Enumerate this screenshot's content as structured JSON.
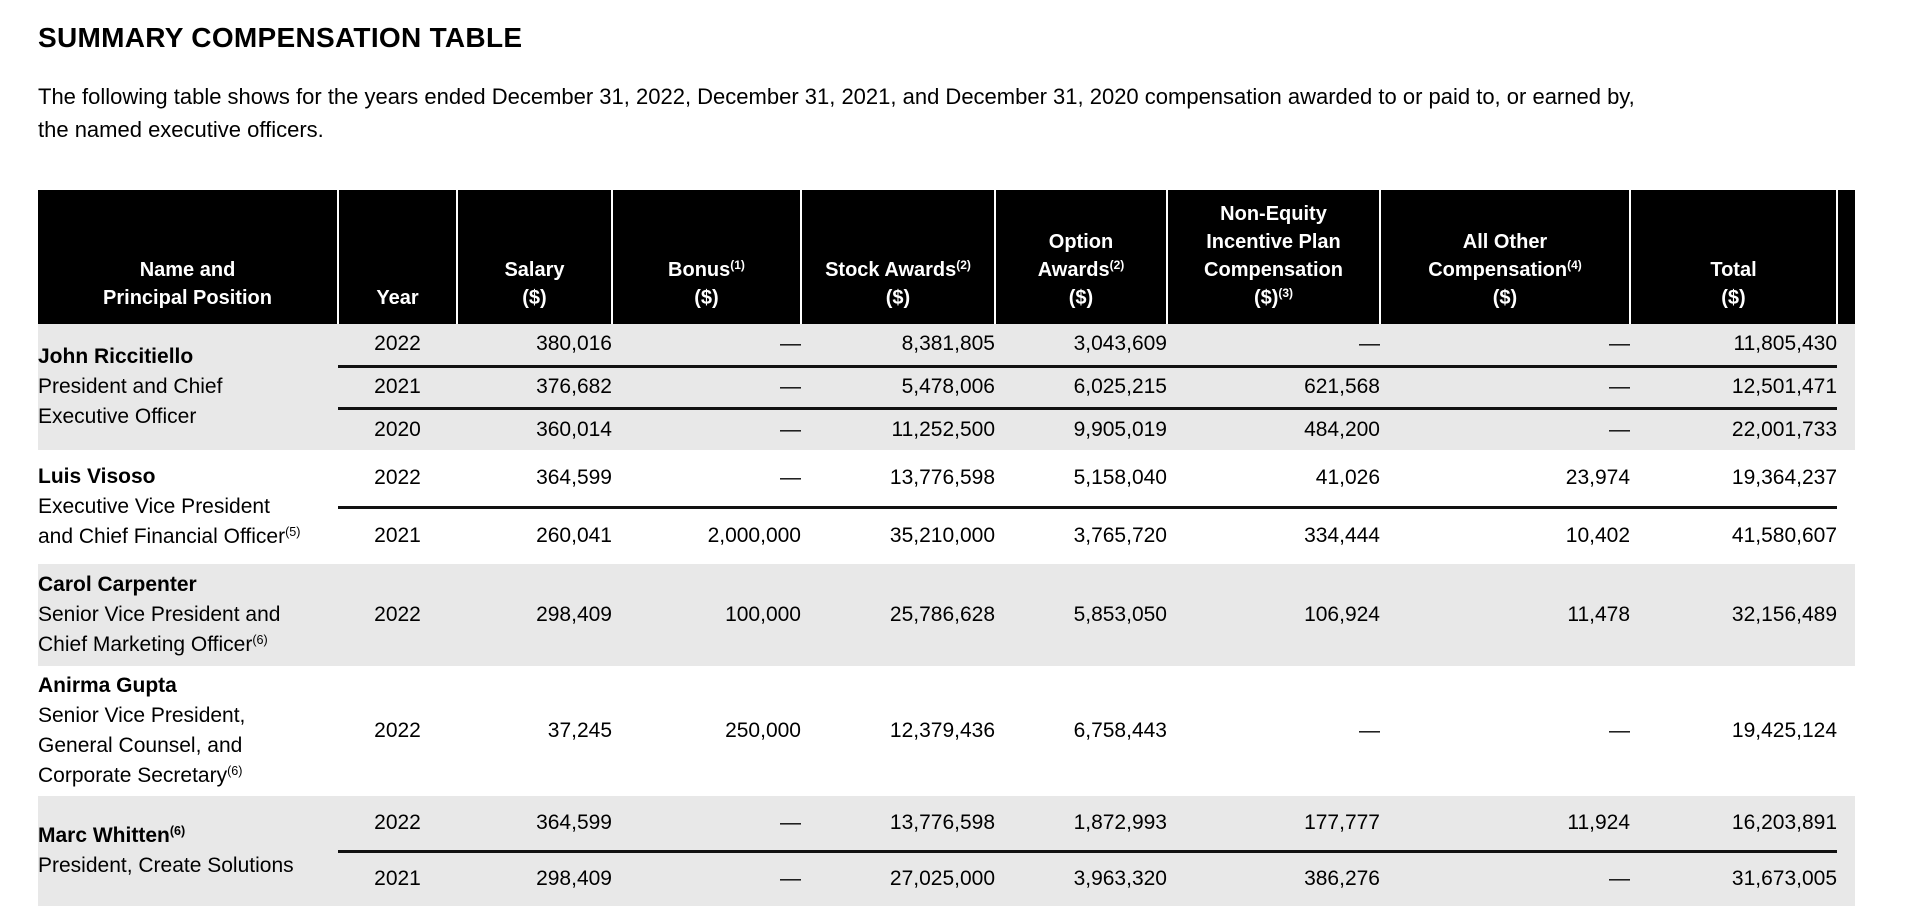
{
  "document": {
    "title": "SUMMARY COMPENSATION TABLE",
    "intro_lines": [
      "The following table shows for the years ended December 31, 2022, December 31, 2021, and December 31, 2020 compensation awarded to or paid to, or earned by,",
      "the named executive officers."
    ]
  },
  "colors": {
    "header_bg": "#000000",
    "header_text": "#ffffff",
    "shaded_row_bg": "#e8e8e8",
    "body_text": "#000000",
    "row_divider": "#111111"
  },
  "table": {
    "header": [
      {
        "id": "name",
        "lines": [
          [
            {
              "t": "Name and"
            }
          ],
          [
            {
              "t": "Principal Position"
            }
          ]
        ]
      },
      {
        "id": "year",
        "lines": [
          [
            {
              "t": "Year"
            }
          ]
        ]
      },
      {
        "id": "salary",
        "lines": [
          [
            {
              "t": "Salary"
            }
          ],
          [
            {
              "t": "($)"
            }
          ]
        ]
      },
      {
        "id": "bonus",
        "lines": [
          [
            {
              "t": "Bonus"
            },
            {
              "sup": "(1)"
            }
          ],
          [
            {
              "t": "($)"
            }
          ]
        ]
      },
      {
        "id": "stock_awards",
        "lines": [
          [
            {
              "t": "Stock Awards"
            },
            {
              "sup": "(2)"
            }
          ],
          [
            {
              "t": "($)"
            }
          ]
        ]
      },
      {
        "id": "option_awards",
        "lines": [
          [
            {
              "t": "Option"
            }
          ],
          [
            {
              "t": "Awards"
            },
            {
              "sup": "(2)"
            }
          ],
          [
            {
              "t": "($)"
            }
          ]
        ]
      },
      {
        "id": "non_equity_incentive",
        "lines": [
          [
            {
              "t": "Non-Equity"
            }
          ],
          [
            {
              "t": "Incentive Plan"
            }
          ],
          [
            {
              "t": "Compensation"
            }
          ],
          [
            {
              "t": "($)"
            },
            {
              "sup": "(3)"
            }
          ]
        ]
      },
      {
        "id": "all_other_comp",
        "lines": [
          [
            {
              "t": "All Other"
            }
          ],
          [
            {
              "t": "Compensation"
            },
            {
              "sup": "(4)"
            }
          ],
          [
            {
              "t": "($)"
            }
          ]
        ]
      },
      {
        "id": "total",
        "lines": [
          [
            {
              "t": "Total"
            }
          ],
          [
            {
              "t": "($)"
            }
          ]
        ]
      }
    ],
    "groups": [
      {
        "name": "John Riccitiello",
        "name_sup": "",
        "position_lines": [
          "President and Chief",
          "Executive Officer"
        ],
        "position_sup": "",
        "shaded": true,
        "rows": [
          [
            "2022",
            "380,016",
            "—",
            "8,381,805",
            "3,043,609",
            "—",
            "—",
            "11,805,430"
          ],
          [
            "2021",
            "376,682",
            "—",
            "5,478,006",
            "6,025,215",
            "621,568",
            "—",
            "12,501,471"
          ],
          [
            "2020",
            "360,014",
            "—",
            "11,252,500",
            "9,905,019",
            "484,200",
            "—",
            "22,001,733"
          ]
        ]
      },
      {
        "name": "Luis Visoso",
        "name_sup": "",
        "position_lines": [
          "Executive Vice President",
          "and Chief Financial Officer"
        ],
        "position_sup": "(5)",
        "shaded": false,
        "rows": [
          [
            "2022",
            "364,599",
            "—",
            "13,776,598",
            "5,158,040",
            "41,026",
            "23,974",
            "19,364,237"
          ],
          [
            "2021",
            "260,041",
            "2,000,000",
            "35,210,000",
            "3,765,720",
            "334,444",
            "10,402",
            "41,580,607"
          ]
        ]
      },
      {
        "name": "Carol Carpenter",
        "name_sup": "",
        "position_lines": [
          "Senior Vice President and",
          "Chief Marketing Officer"
        ],
        "position_sup": "(6)",
        "shaded": true,
        "rows": [
          [
            "2022",
            "298,409",
            "100,000",
            "25,786,628",
            "5,853,050",
            "106,924",
            "11,478",
            "32,156,489"
          ]
        ]
      },
      {
        "name": "Anirma Gupta",
        "name_sup": "",
        "position_lines": [
          "Senior Vice President,",
          "General Counsel, and",
          "Corporate Secretary"
        ],
        "position_sup": "(6)",
        "shaded": false,
        "rows": [
          [
            "2022",
            "37,245",
            "250,000",
            "12,379,436",
            "6,758,443",
            "—",
            "—",
            "19,425,124"
          ]
        ]
      },
      {
        "name": "Marc Whitten",
        "name_sup": "(6)",
        "position_lines": [
          "President, Create Solutions"
        ],
        "position_sup": "",
        "shaded": true,
        "rows": [
          [
            "2022",
            "364,599",
            "—",
            "13,776,598",
            "1,872,993",
            "177,777",
            "11,924",
            "16,203,891"
          ],
          [
            "2021",
            "298,409",
            "—",
            "27,025,000",
            "3,963,320",
            "386,276",
            "—",
            "31,673,005"
          ]
        ]
      }
    ]
  }
}
